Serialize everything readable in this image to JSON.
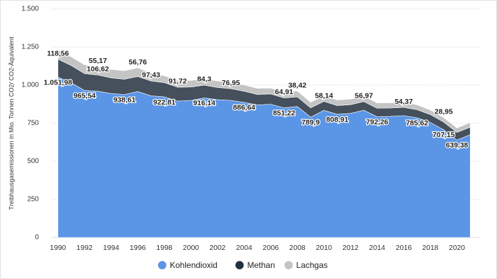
{
  "chart_data": {
    "type": "stacked_area",
    "y_label": "Treibhausgasemissionen in Mio. Tonnen CO2/ CO2-Äquivalent",
    "x": [
      1990,
      1991,
      1992,
      1993,
      1994,
      1995,
      1996,
      1997,
      1998,
      1999,
      2000,
      2001,
      2002,
      2003,
      2004,
      2005,
      2006,
      2007,
      2008,
      2009,
      2010,
      2011,
      2012,
      2013,
      2014,
      2015,
      2016,
      2017,
      2018,
      2019,
      2020,
      2021
    ],
    "series": [
      {
        "name": "Kohlendioxid",
        "color": "#5b95e6",
        "values": [
          1051.98,
          1015,
          965.54,
          960,
          945,
          938.61,
          958,
          930,
          922.81,
          895,
          900,
          916.14,
          905,
          900,
          886.64,
          870,
          875,
          851.22,
          860,
          789.9,
          835,
          808.91,
          815,
          835,
          792.26,
          795,
          800,
          785.62,
          755,
          707.15,
          639.38,
          675
        ],
        "value_labels": [
          "1.051,98",
          null,
          "965,54",
          null,
          null,
          "938,61",
          null,
          null,
          "922,81",
          null,
          null,
          "916,14",
          null,
          null,
          "886,64",
          null,
          null,
          "851,22",
          null,
          "789,9",
          null,
          "808,91",
          null,
          null,
          "792,26",
          null,
          null,
          "785,62",
          null,
          "707,15",
          "639,38",
          null
        ]
      },
      {
        "name": "Methan",
        "color": "#24313f",
        "values": [
          118.56,
          114,
          110,
          106.62,
          103,
          100,
          99,
          97.43,
          94,
          91.72,
          88,
          84.3,
          80,
          76.95,
          73,
          69,
          67,
          64.91,
          63,
          61,
          58.14,
          57.5,
          57,
          56.97,
          56,
          55,
          54.37,
          53,
          52,
          51,
          50,
          49
        ],
        "value_labels": [
          "118,56",
          null,
          null,
          "106,62",
          null,
          null,
          null,
          "97,43",
          null,
          "91,72",
          null,
          "84,3",
          null,
          "76,95",
          null,
          null,
          null,
          "64,91",
          null,
          null,
          "58,14",
          null,
          null,
          "56,97",
          null,
          null,
          "54,37",
          null,
          null,
          null,
          null,
          null
        ]
      },
      {
        "name": "Lachgas",
        "color": "#c4c4c4",
        "values": [
          60,
          57,
          58,
          55.17,
          55,
          56,
          56.76,
          53,
          45,
          44,
          43,
          42,
          42,
          41,
          41,
          40,
          39,
          39,
          38.42,
          37,
          37,
          36,
          36,
          35,
          35,
          34,
          33,
          32,
          30,
          28.95,
          29,
          30
        ],
        "value_labels": [
          null,
          null,
          null,
          "55,17",
          null,
          null,
          "56,76",
          null,
          null,
          null,
          null,
          null,
          null,
          null,
          null,
          null,
          null,
          null,
          "38,42",
          null,
          null,
          null,
          null,
          null,
          null,
          null,
          null,
          null,
          null,
          "28,95",
          null,
          null
        ]
      }
    ],
    "xlim": [
      1989.5,
      2021.5
    ],
    "xticks": [
      1990,
      1992,
      1994,
      1996,
      1998,
      2000,
      2002,
      2004,
      2006,
      2008,
      2010,
      2012,
      2014,
      2016,
      2018,
      2020
    ],
    "ylim": [
      0,
      1500
    ],
    "yticks": [
      0,
      250,
      500,
      750,
      {
        "value": 1000,
        "label": "1.000"
      },
      {
        "value": 1250,
        "label": "1.250"
      },
      {
        "value": 1500,
        "label": "1.500"
      }
    ],
    "grid": true
  }
}
